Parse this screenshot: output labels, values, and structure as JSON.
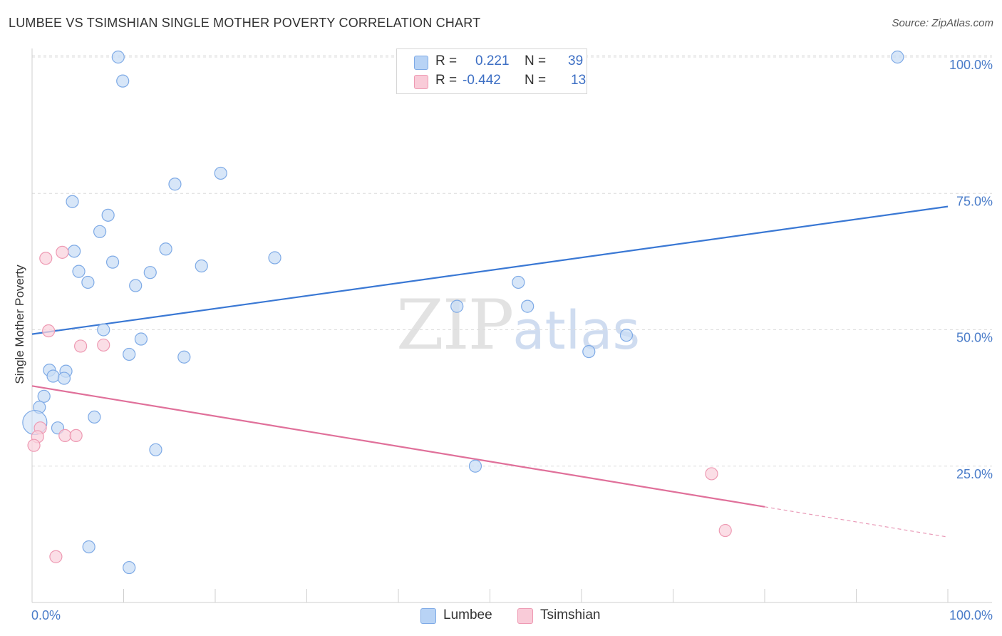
{
  "title": "LUMBEE VS TSIMSHIAN SINGLE MOTHER POVERTY CORRELATION CHART",
  "source": "Source: ZipAtlas.com",
  "watermark": {
    "zip": "ZIP",
    "atlas": "atlas"
  },
  "legend": {
    "rows": [
      {
        "r_label": "R =",
        "r_value": "0.221",
        "n_label": "N =",
        "n_value": "39",
        "color": "#b8d3f5",
        "border": "#7eaae6"
      },
      {
        "r_label": "R =",
        "r_value": "-0.442",
        "n_label": "N =",
        "n_value": "13",
        "color": "#f9cbd8",
        "border": "#ee9ab3"
      }
    ]
  },
  "bottom_legend": [
    {
      "label": "Lumbee",
      "color": "#b8d3f5",
      "border": "#7eaae6"
    },
    {
      "label": "Tsimshian",
      "color": "#f9cbd8",
      "border": "#ee9ab3"
    }
  ],
  "chart_data": {
    "type": "scatter",
    "title": "LUMBEE VS TSIMSHIAN SINGLE MOTHER POVERTY CORRELATION CHART",
    "xlabel": "",
    "ylabel": "Single Mother Poverty",
    "xlim": [
      0,
      100
    ],
    "ylim": [
      0,
      103
    ],
    "x_tick_labels": [
      "0.0%",
      "100.0%"
    ],
    "y_ticks": [
      25,
      50,
      75,
      100
    ],
    "y_tick_labels": [
      "25.0%",
      "50.0%",
      "75.0%",
      "100.0%"
    ],
    "grid": true,
    "legend_position": "top-center",
    "series": [
      {
        "name": "Lumbee",
        "color": "#7eaae6",
        "fill": "#c9ddf6",
        "r": 0.221,
        "n": 39,
        "trend": {
          "x0": 0,
          "y0": 49.2,
          "x1": 100,
          "y1": 72.6,
          "solid_until": 100
        },
        "points": [
          [
            9.4,
            100.0
          ],
          [
            9.9,
            95.6
          ],
          [
            94.5,
            100.0
          ],
          [
            20.6,
            78.7
          ],
          [
            15.6,
            76.7
          ],
          [
            4.4,
            73.5
          ],
          [
            8.3,
            71.0
          ],
          [
            7.4,
            68.0
          ],
          [
            4.6,
            64.4
          ],
          [
            14.6,
            64.8
          ],
          [
            8.8,
            62.4
          ],
          [
            26.5,
            63.2
          ],
          [
            18.5,
            61.7
          ],
          [
            5.1,
            60.7
          ],
          [
            12.9,
            60.5
          ],
          [
            6.1,
            58.7
          ],
          [
            11.3,
            58.1
          ],
          [
            54.1,
            54.3
          ],
          [
            46.4,
            54.3
          ],
          [
            53.1,
            58.7
          ],
          [
            7.8,
            50.0
          ],
          [
            11.9,
            48.3
          ],
          [
            10.6,
            45.5
          ],
          [
            16.6,
            45.0
          ],
          [
            60.8,
            46.0
          ],
          [
            64.9,
            49.0
          ],
          [
            1.9,
            42.6
          ],
          [
            3.7,
            42.4
          ],
          [
            2.3,
            41.5
          ],
          [
            3.5,
            41.1
          ],
          [
            1.3,
            37.8
          ],
          [
            0.8,
            35.8
          ],
          [
            0.3,
            33.0
          ],
          [
            6.8,
            34.0
          ],
          [
            2.8,
            32.0
          ],
          [
            13.5,
            28.0
          ],
          [
            48.4,
            25.0
          ],
          [
            6.2,
            10.2
          ],
          [
            10.6,
            6.4
          ]
        ]
      },
      {
        "name": "Tsimshian",
        "color": "#ee9ab3",
        "fill": "#f9d3de",
        "r": -0.442,
        "n": 13,
        "trend": {
          "x0": 0,
          "y0": 39.7,
          "x1": 100,
          "y1": 12.0,
          "solid_until": 80
        },
        "points": [
          [
            1.5,
            63.1
          ],
          [
            3.3,
            64.2
          ],
          [
            1.8,
            49.8
          ],
          [
            5.3,
            47.0
          ],
          [
            7.8,
            47.2
          ],
          [
            0.9,
            32.0
          ],
          [
            0.6,
            30.4
          ],
          [
            3.6,
            30.6
          ],
          [
            4.8,
            30.6
          ],
          [
            0.2,
            28.8
          ],
          [
            74.2,
            23.6
          ],
          [
            75.7,
            13.2
          ],
          [
            2.6,
            8.4
          ]
        ]
      }
    ]
  }
}
